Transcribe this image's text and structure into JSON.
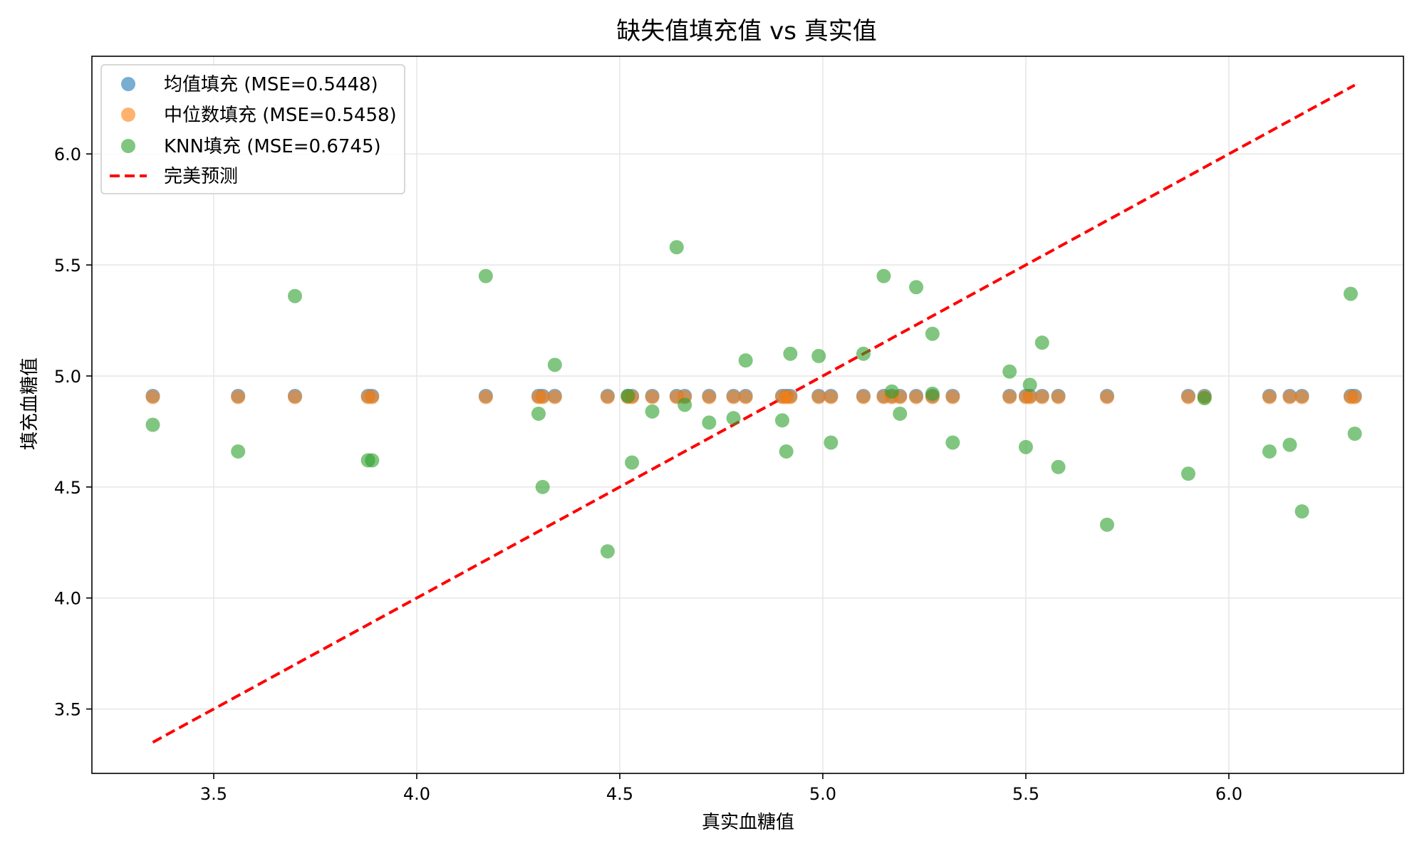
{
  "chart_data": {
    "type": "scatter",
    "title": "缺失值填充值 vs 真实值",
    "xlabel": "真实血糖值",
    "ylabel": "填充血糖值",
    "xlim": [
      3.2,
      6.43
    ],
    "ylim": [
      3.21,
      6.44
    ],
    "x_ticks": [
      "3.5",
      "4.0",
      "4.5",
      "5.0",
      "5.5",
      "6.0"
    ],
    "y_ticks": [
      "3.5",
      "4.0",
      "4.5",
      "5.0",
      "5.5",
      "6.0"
    ],
    "grid": true,
    "legend_position": "top-left",
    "series": [
      {
        "name": "均值填充 (MSE=0.5448)",
        "color": "#1f77b4",
        "points": [
          [
            3.35,
            4.91
          ],
          [
            3.56,
            4.91
          ],
          [
            3.7,
            4.91
          ],
          [
            3.88,
            4.91
          ],
          [
            3.89,
            4.91
          ],
          [
            4.17,
            4.91
          ],
          [
            4.3,
            4.91
          ],
          [
            4.31,
            4.91
          ],
          [
            4.34,
            4.91
          ],
          [
            4.47,
            4.91
          ],
          [
            4.52,
            4.91
          ],
          [
            4.53,
            4.91
          ],
          [
            4.58,
            4.91
          ],
          [
            4.64,
            4.91
          ],
          [
            4.66,
            4.91
          ],
          [
            4.72,
            4.91
          ],
          [
            4.78,
            4.91
          ],
          [
            4.81,
            4.91
          ],
          [
            4.9,
            4.91
          ],
          [
            4.91,
            4.91
          ],
          [
            4.92,
            4.91
          ],
          [
            4.99,
            4.91
          ],
          [
            5.02,
            4.91
          ],
          [
            5.1,
            4.91
          ],
          [
            5.15,
            4.91
          ],
          [
            5.17,
            4.91
          ],
          [
            5.19,
            4.91
          ],
          [
            5.23,
            4.91
          ],
          [
            5.27,
            4.91
          ],
          [
            5.32,
            4.91
          ],
          [
            5.46,
            4.91
          ],
          [
            5.5,
            4.91
          ],
          [
            5.51,
            4.91
          ],
          [
            5.54,
            4.91
          ],
          [
            5.58,
            4.91
          ],
          [
            5.7,
            4.91
          ],
          [
            5.9,
            4.91
          ],
          [
            5.94,
            4.91
          ],
          [
            6.1,
            4.91
          ],
          [
            6.15,
            4.91
          ],
          [
            6.18,
            4.91
          ],
          [
            6.3,
            4.91
          ],
          [
            6.31,
            4.91
          ]
        ]
      },
      {
        "name": "中位数填充 (MSE=0.5458)",
        "color": "#ff7f0e",
        "points": [
          [
            3.35,
            4.905
          ],
          [
            3.56,
            4.905
          ],
          [
            3.7,
            4.905
          ],
          [
            3.88,
            4.905
          ],
          [
            3.89,
            4.905
          ],
          [
            4.17,
            4.905
          ],
          [
            4.3,
            4.905
          ],
          [
            4.31,
            4.905
          ],
          [
            4.34,
            4.905
          ],
          [
            4.47,
            4.905
          ],
          [
            4.52,
            4.905
          ],
          [
            4.53,
            4.905
          ],
          [
            4.58,
            4.905
          ],
          [
            4.64,
            4.905
          ],
          [
            4.66,
            4.905
          ],
          [
            4.72,
            4.905
          ],
          [
            4.78,
            4.905
          ],
          [
            4.81,
            4.905
          ],
          [
            4.9,
            4.905
          ],
          [
            4.91,
            4.905
          ],
          [
            4.92,
            4.905
          ],
          [
            4.99,
            4.905
          ],
          [
            5.02,
            4.905
          ],
          [
            5.1,
            4.905
          ],
          [
            5.15,
            4.905
          ],
          [
            5.17,
            4.905
          ],
          [
            5.19,
            4.905
          ],
          [
            5.23,
            4.905
          ],
          [
            5.27,
            4.905
          ],
          [
            5.32,
            4.905
          ],
          [
            5.46,
            4.905
          ],
          [
            5.5,
            4.905
          ],
          [
            5.51,
            4.905
          ],
          [
            5.54,
            4.905
          ],
          [
            5.58,
            4.905
          ],
          [
            5.7,
            4.905
          ],
          [
            5.9,
            4.905
          ],
          [
            5.94,
            4.905
          ],
          [
            6.1,
            4.905
          ],
          [
            6.15,
            4.905
          ],
          [
            6.18,
            4.905
          ],
          [
            6.3,
            4.905
          ],
          [
            6.31,
            4.905
          ]
        ]
      },
      {
        "name": "KNN填充 (MSE=0.6745)",
        "color": "#2ca02c",
        "points": [
          [
            3.35,
            4.78
          ],
          [
            3.56,
            4.66
          ],
          [
            3.7,
            5.36
          ],
          [
            3.88,
            4.62
          ],
          [
            3.89,
            4.62
          ],
          [
            4.17,
            5.45
          ],
          [
            4.3,
            4.83
          ],
          [
            4.31,
            4.5
          ],
          [
            4.34,
            5.05
          ],
          [
            4.47,
            4.21
          ],
          [
            4.52,
            4.91
          ],
          [
            4.53,
            4.61
          ],
          [
            4.58,
            4.84
          ],
          [
            4.64,
            5.58
          ],
          [
            4.66,
            4.87
          ],
          [
            4.72,
            4.79
          ],
          [
            4.78,
            4.81
          ],
          [
            4.81,
            5.07
          ],
          [
            4.9,
            4.8
          ],
          [
            4.91,
            4.66
          ],
          [
            4.92,
            5.1
          ],
          [
            4.99,
            5.09
          ],
          [
            5.02,
            4.7
          ],
          [
            5.1,
            5.1
          ],
          [
            5.15,
            5.45
          ],
          [
            5.17,
            4.93
          ],
          [
            5.19,
            4.83
          ],
          [
            5.23,
            5.4
          ],
          [
            5.27,
            5.19
          ],
          [
            5.27,
            4.92
          ],
          [
            5.32,
            4.7
          ],
          [
            5.46,
            5.02
          ],
          [
            5.5,
            4.68
          ],
          [
            5.51,
            4.96
          ],
          [
            5.54,
            5.15
          ],
          [
            5.58,
            4.59
          ],
          [
            5.7,
            4.33
          ],
          [
            5.9,
            4.56
          ],
          [
            5.94,
            4.9
          ],
          [
            6.1,
            4.66
          ],
          [
            6.15,
            4.69
          ],
          [
            6.18,
            4.39
          ],
          [
            6.3,
            5.37
          ],
          [
            6.31,
            4.74
          ]
        ]
      }
    ],
    "reference_line": {
      "name": "完美预测",
      "color": "#ff0000",
      "style": "dashed",
      "points": [
        [
          3.35,
          3.35
        ],
        [
          6.31,
          6.31
        ]
      ]
    }
  }
}
